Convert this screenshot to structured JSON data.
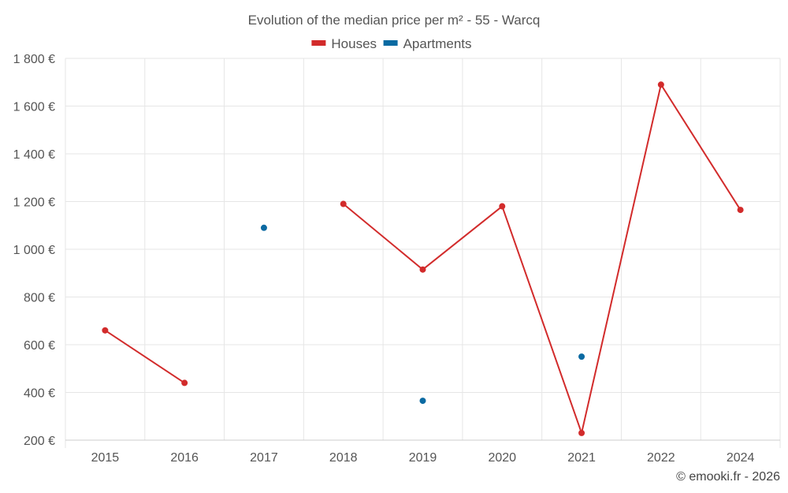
{
  "chart_data": {
    "type": "line",
    "title": "Evolution of the median price per m² - 55 - Warcq",
    "categories": [
      "2015",
      "2016",
      "2017",
      "2018",
      "2019",
      "2020",
      "2021",
      "2022",
      "2024"
    ],
    "series": [
      {
        "name": "Houses",
        "color": "#d22b2b",
        "values": [
          660,
          440,
          null,
          1190,
          915,
          1180,
          230,
          1690,
          1165
        ]
      },
      {
        "name": "Apartments",
        "color": "#0b6aa2",
        "values": [
          null,
          null,
          1090,
          null,
          365,
          null,
          550,
          null,
          null
        ]
      }
    ],
    "ylim": [
      200,
      1800
    ],
    "yticks": [
      200,
      400,
      600,
      800,
      1000,
      1200,
      1400,
      1600,
      1800
    ],
    "ytick_labels": [
      "200 €",
      "400 €",
      "600 €",
      "800 €",
      "1 000 €",
      "1 200 €",
      "1 400 €",
      "1 600 €",
      "1 800 €"
    ],
    "xlabel": "",
    "ylabel": "",
    "grid": true,
    "legend_position": "top-center",
    "credit": "© emooki.fr - 2026"
  }
}
